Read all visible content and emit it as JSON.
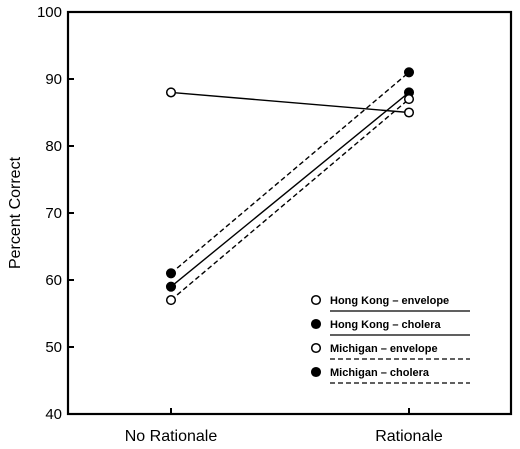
{
  "chart_data": {
    "type": "line",
    "title": "",
    "xlabel": "",
    "ylabel": "Percent Correct",
    "categories": [
      "No Rationale",
      "Rationale"
    ],
    "ylim": [
      40,
      100
    ],
    "yticks": [
      40,
      50,
      60,
      70,
      80,
      90,
      100
    ],
    "grid": false,
    "legend_position": "bottom-right",
    "series": [
      {
        "name": "Hong Kong – envelope",
        "values": [
          88,
          85
        ],
        "marker": "open-circle",
        "line": "solid"
      },
      {
        "name": "Hong Kong – cholera",
        "values": [
          59,
          88
        ],
        "marker": "filled-circle",
        "line": "solid"
      },
      {
        "name": "Michigan – envelope",
        "values": [
          57,
          87
        ],
        "marker": "open-circle",
        "line": "dashed"
      },
      {
        "name": "Michigan – cholera",
        "values": [
          61,
          91
        ],
        "marker": "filled-circle",
        "line": "dashed"
      }
    ]
  }
}
